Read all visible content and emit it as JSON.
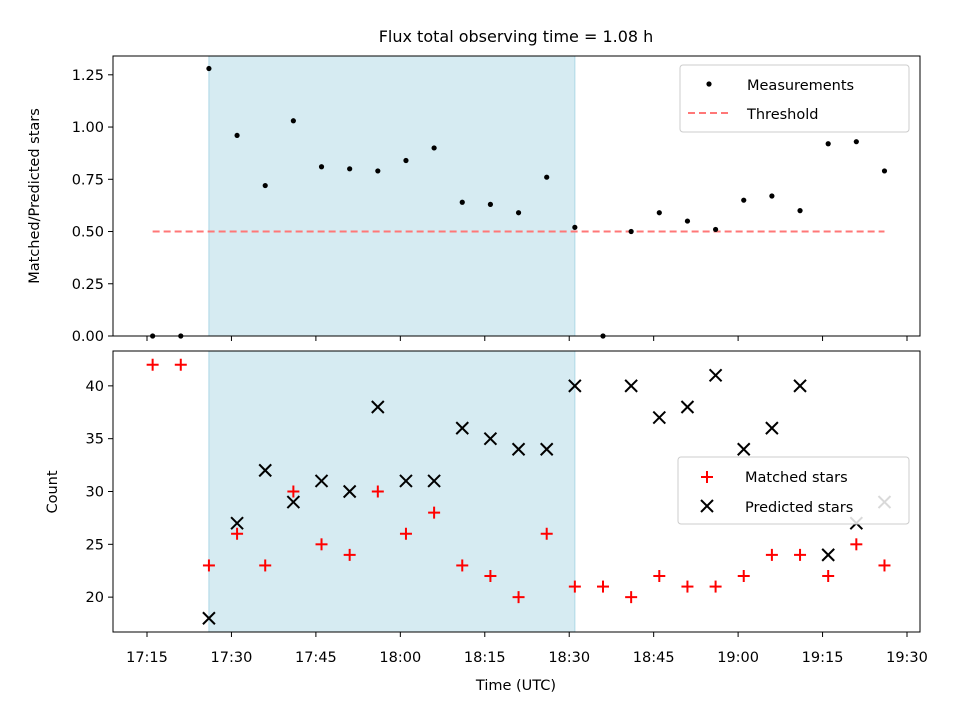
{
  "chart_data": {
    "title": "Flux total observing time = 1.08 h",
    "x_label": "Time (UTC)",
    "x_ticks": [
      "17:15",
      "17:30",
      "17:45",
      "18:00",
      "18:15",
      "18:30",
      "18:45",
      "19:00",
      "19:15",
      "19:30"
    ],
    "shaded_interval": {
      "start": "17:26",
      "end": "18:31",
      "color": "#add8e6"
    },
    "panels": [
      {
        "type": "scatter",
        "ylabel": "Matched/Predicted stars",
        "ylim": [
          0,
          1.34
        ],
        "y_ticks": [
          "0.00",
          "0.25",
          "0.50",
          "0.75",
          "1.00",
          "1.25"
        ],
        "legend_position": "top-right",
        "series": [
          {
            "name": "Measurements",
            "marker": "dot",
            "color": "#000000",
            "points": [
              [
                "17:16",
                0.0
              ],
              [
                "17:21",
                0.0
              ],
              [
                "17:26",
                1.28
              ],
              [
                "17:31",
                0.96
              ],
              [
                "17:36",
                0.72
              ],
              [
                "17:41",
                1.03
              ],
              [
                "17:46",
                0.81
              ],
              [
                "17:51",
                0.8
              ],
              [
                "17:56",
                0.79
              ],
              [
                "18:01",
                0.84
              ],
              [
                "18:06",
                0.9
              ],
              [
                "18:11",
                0.64
              ],
              [
                "18:16",
                0.63
              ],
              [
                "18:21",
                0.59
              ],
              [
                "18:26",
                0.76
              ],
              [
                "18:31",
                0.52
              ],
              [
                "18:36",
                0.0
              ],
              [
                "18:41",
                0.5
              ],
              [
                "18:46",
                0.59
              ],
              [
                "18:51",
                0.55
              ],
              [
                "18:56",
                0.51
              ],
              [
                "19:01",
                0.65
              ],
              [
                "19:06",
                0.67
              ],
              [
                "19:11",
                0.6
              ],
              [
                "19:16",
                0.92
              ],
              [
                "19:21",
                0.93
              ],
              [
                "19:26",
                0.79
              ]
            ]
          },
          {
            "name": "Threshold",
            "type": "line",
            "style": "dashed",
            "color": "#ff7777",
            "points": [
              [
                "17:16",
                0.5
              ],
              [
                "19:26",
                0.5
              ]
            ]
          }
        ]
      },
      {
        "type": "scatter",
        "ylabel": "Count",
        "ylim": [
          16.7,
          43.3
        ],
        "y_ticks": [
          "20",
          "25",
          "30",
          "35",
          "40"
        ],
        "legend_position": "center-right",
        "series": [
          {
            "name": "Matched stars",
            "marker": "plus",
            "color": "#ff0000",
            "points": [
              [
                "17:16",
                42
              ],
              [
                "17:21",
                42
              ],
              [
                "17:26",
                23
              ],
              [
                "17:31",
                26
              ],
              [
                "17:36",
                23
              ],
              [
                "17:41",
                30
              ],
              [
                "17:46",
                25
              ],
              [
                "17:51",
                24
              ],
              [
                "17:56",
                30
              ],
              [
                "18:01",
                26
              ],
              [
                "18:06",
                28
              ],
              [
                "18:11",
                23
              ],
              [
                "18:16",
                22
              ],
              [
                "18:21",
                20
              ],
              [
                "18:26",
                26
              ],
              [
                "18:31",
                21
              ],
              [
                "18:36",
                21
              ],
              [
                "18:41",
                20
              ],
              [
                "18:46",
                22
              ],
              [
                "18:51",
                21
              ],
              [
                "18:56",
                21
              ],
              [
                "19:01",
                22
              ],
              [
                "19:06",
                24
              ],
              [
                "19:11",
                24
              ],
              [
                "19:16",
                22
              ],
              [
                "19:21",
                25
              ],
              [
                "19:26",
                23
              ]
            ]
          },
          {
            "name": "Predicted stars",
            "marker": "x",
            "color": "#000000",
            "points": [
              [
                "17:26",
                18
              ],
              [
                "17:31",
                27
              ],
              [
                "17:36",
                32
              ],
              [
                "17:41",
                29
              ],
              [
                "17:46",
                31
              ],
              [
                "17:51",
                30
              ],
              [
                "17:56",
                38
              ],
              [
                "18:01",
                31
              ],
              [
                "18:06",
                31
              ],
              [
                "18:11",
                36
              ],
              [
                "18:16",
                35
              ],
              [
                "18:21",
                34
              ],
              [
                "18:26",
                34
              ],
              [
                "18:31",
                40
              ],
              [
                "18:41",
                40
              ],
              [
                "18:46",
                37
              ],
              [
                "18:51",
                38
              ],
              [
                "18:56",
                41
              ],
              [
                "19:01",
                34
              ],
              [
                "19:06",
                36
              ],
              [
                "19:11",
                40
              ],
              [
                "19:16",
                24
              ],
              [
                "19:21",
                27
              ],
              [
                "19:26",
                29
              ]
            ]
          }
        ]
      }
    ]
  }
}
